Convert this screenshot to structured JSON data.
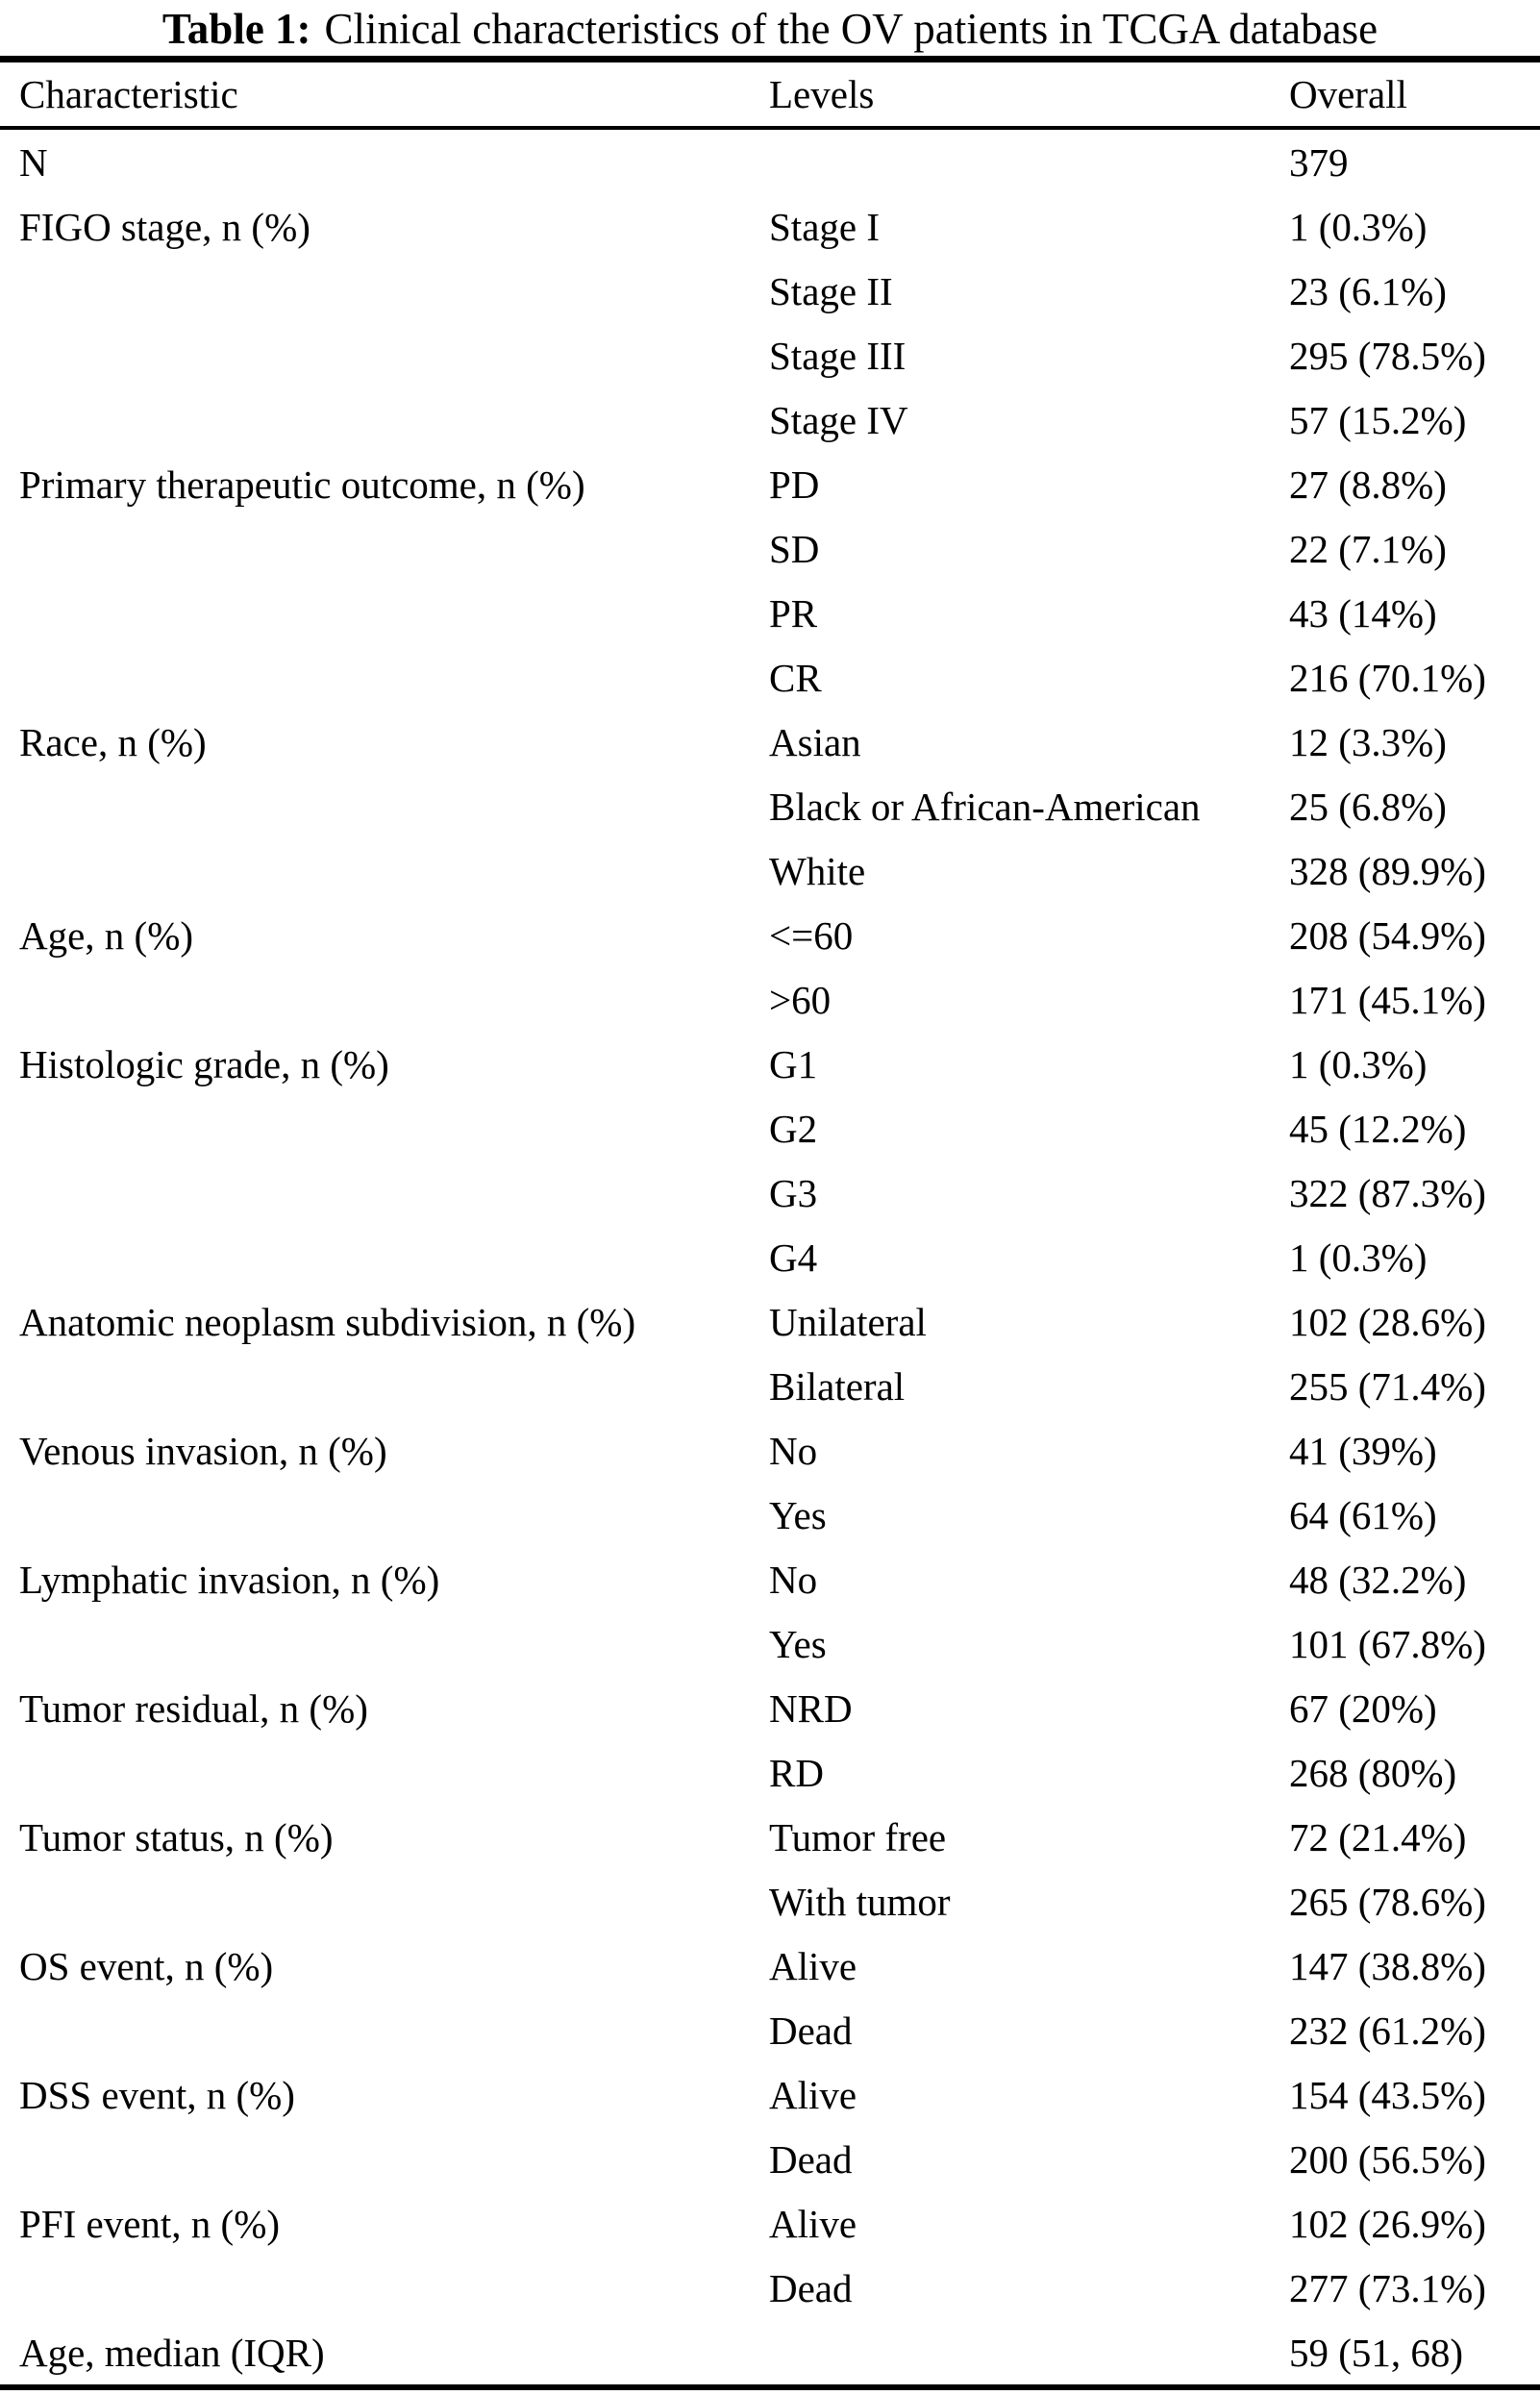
{
  "caption": {
    "label": "Table 1:",
    "text": "Clinical characteristics of the OV patients in TCGA database"
  },
  "table": {
    "headers": [
      "Characteristic",
      "Levels",
      "Overall"
    ],
    "rows": [
      {
        "characteristic": "N",
        "level": "",
        "overall": "379"
      },
      {
        "characteristic": "FIGO stage, n (%)",
        "level": "Stage I",
        "overall": "1 (0.3%)"
      },
      {
        "characteristic": "",
        "level": "Stage II",
        "overall": "23 (6.1%)"
      },
      {
        "characteristic": "",
        "level": "Stage III",
        "overall": "295 (78.5%)"
      },
      {
        "characteristic": "",
        "level": "Stage IV",
        "overall": "57 (15.2%)"
      },
      {
        "characteristic": "Primary therapeutic outcome, n (%)",
        "level": "PD",
        "overall": "27 (8.8%)"
      },
      {
        "characteristic": "",
        "level": "SD",
        "overall": "22 (7.1%)"
      },
      {
        "characteristic": "",
        "level": "PR",
        "overall": "43 (14%)"
      },
      {
        "characteristic": "",
        "level": "CR",
        "overall": "216 (70.1%)"
      },
      {
        "characteristic": "Race, n (%)",
        "level": "Asian",
        "overall": "12 (3.3%)"
      },
      {
        "characteristic": "",
        "level": "Black or African-American",
        "overall": "25 (6.8%)"
      },
      {
        "characteristic": "",
        "level": "White",
        "overall": "328 (89.9%)"
      },
      {
        "characteristic": "Age, n (%)",
        "level": "<=60",
        "overall": "208 (54.9%)"
      },
      {
        "characteristic": "",
        "level": ">60",
        "overall": "171 (45.1%)"
      },
      {
        "characteristic": "Histologic grade, n (%)",
        "level": "G1",
        "overall": "1 (0.3%)"
      },
      {
        "characteristic": "",
        "level": "G2",
        "overall": "45 (12.2%)"
      },
      {
        "characteristic": "",
        "level": "G3",
        "overall": "322 (87.3%)"
      },
      {
        "characteristic": "",
        "level": "G4",
        "overall": "1 (0.3%)"
      },
      {
        "characteristic": "Anatomic neoplasm subdivision, n (%)",
        "level": "Unilateral",
        "overall": "102 (28.6%)"
      },
      {
        "characteristic": "",
        "level": "Bilateral",
        "overall": "255 (71.4%)"
      },
      {
        "characteristic": "Venous invasion, n (%)",
        "level": "No",
        "overall": "41 (39%)"
      },
      {
        "characteristic": "",
        "level": "Yes",
        "overall": "64 (61%)"
      },
      {
        "characteristic": "Lymphatic invasion, n (%)",
        "level": "No",
        "overall": "48 (32.2%)"
      },
      {
        "characteristic": "",
        "level": "Yes",
        "overall": "101 (67.8%)"
      },
      {
        "characteristic": "Tumor residual, n (%)",
        "level": "NRD",
        "overall": "67 (20%)"
      },
      {
        "characteristic": "",
        "level": "RD",
        "overall": "268 (80%)"
      },
      {
        "characteristic": "Tumor status, n (%)",
        "level": "Tumor free",
        "overall": "72 (21.4%)"
      },
      {
        "characteristic": "",
        "level": "With tumor",
        "overall": "265 (78.6%)"
      },
      {
        "characteristic": "OS event, n (%)",
        "level": "Alive",
        "overall": "147 (38.8%)"
      },
      {
        "characteristic": "",
        "level": "Dead",
        "overall": "232 (61.2%)"
      },
      {
        "characteristic": "DSS event, n (%)",
        "level": "Alive",
        "overall": "154 (43.5%)"
      },
      {
        "characteristic": "",
        "level": "Dead",
        "overall": "200 (56.5%)"
      },
      {
        "characteristic": "PFI event, n (%)",
        "level": "Alive",
        "overall": "102 (26.9%)"
      },
      {
        "characteristic": "",
        "level": "Dead",
        "overall": "277 (73.1%)"
      },
      {
        "characteristic": "Age, median (IQR)",
        "level": "",
        "overall": "59 (51, 68)"
      }
    ]
  }
}
